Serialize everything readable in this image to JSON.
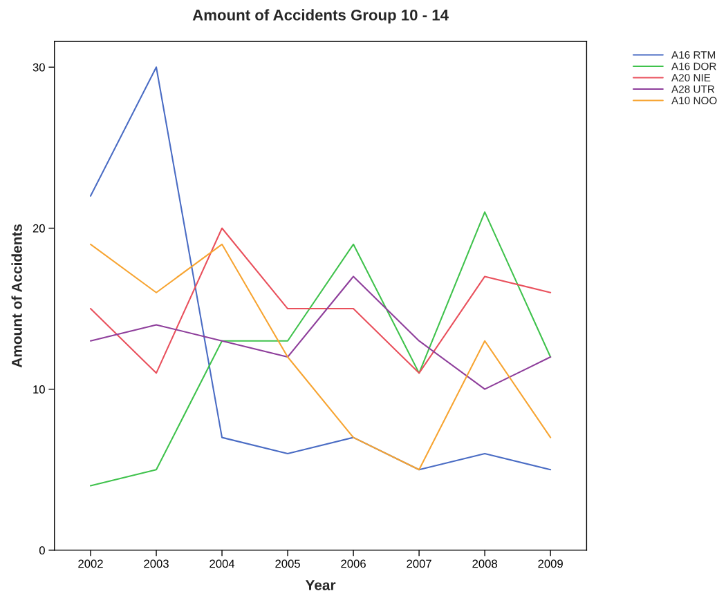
{
  "chart_data": {
    "type": "line",
    "title": "Amount of Accidents Group 10 - 14",
    "xlabel": "Year",
    "ylabel": "Amount of Accidents",
    "categories": [
      "2002",
      "2003",
      "2004",
      "2005",
      "2006",
      "2007",
      "2008",
      "2009"
    ],
    "series": [
      {
        "name": "A16 RTM",
        "color": "#4a6cc4",
        "values": [
          22,
          30,
          7,
          6,
          7,
          5,
          6,
          5
        ]
      },
      {
        "name": "A16 DOR",
        "color": "#3fc24c",
        "values": [
          4,
          5,
          13,
          13,
          19,
          11,
          21,
          12
        ]
      },
      {
        "name": "A20 NIE",
        "color": "#e9505c",
        "values": [
          15,
          11,
          20,
          15,
          15,
          11,
          17,
          16
        ]
      },
      {
        "name": "A28 UTR",
        "color": "#8e3e9b",
        "values": [
          13,
          14,
          13,
          12,
          17,
          13,
          10,
          12
        ]
      },
      {
        "name": "A10 NOO",
        "color": "#f7a431",
        "values": [
          19,
          16,
          19,
          12,
          7,
          5,
          13,
          7
        ]
      }
    ],
    "ylim": [
      0,
      31.6
    ],
    "yticks": [
      0,
      10,
      20,
      30
    ],
    "grid": false,
    "legend": "top right",
    "marker": "none",
    "line_style": "solid"
  }
}
